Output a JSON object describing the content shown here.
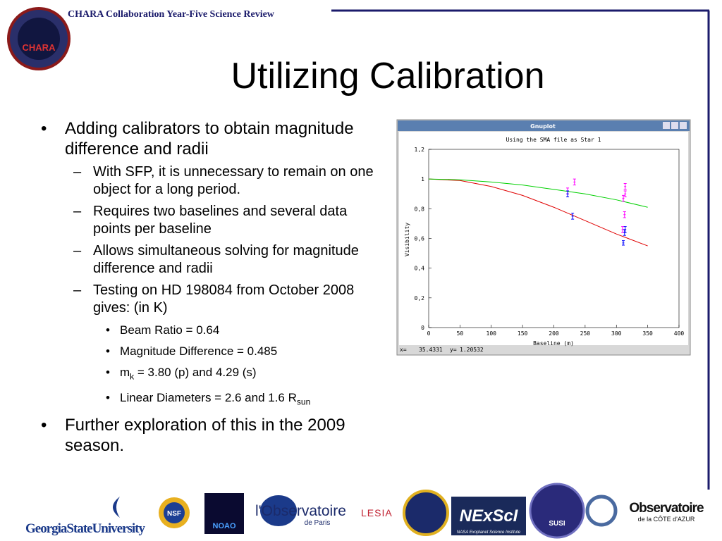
{
  "header": {
    "text": "CHARA Collaboration Year-Five Science Review",
    "logo_text": "CHARA"
  },
  "title": "Utilizing Calibration",
  "bullets": [
    {
      "text": "Adding calibrators to obtain magnitude difference and radii",
      "children": [
        {
          "text": "With SFP, it is unnecessary to remain on one object for a long period."
        },
        {
          "text": "Requires two baselines and several data points per baseline"
        },
        {
          "text": "Allows simultaneous solving for magnitude difference and radii"
        },
        {
          "text": "Testing on HD 198084 from October 2008 gives: (in K)",
          "children": [
            {
              "text": "Beam Ratio = 0.64"
            },
            {
              "text": "Magnitude Difference = 0.485"
            },
            {
              "parts": [
                "m",
                "k",
                " = 3.80 (p) and 4.29 (s)"
              ]
            },
            {
              "parts": [
                "Linear Diameters = 2.6 and 1.6 R",
                "sun"
              ]
            }
          ]
        }
      ]
    },
    {
      "text": "Further exploration of this in the 2009 season."
    }
  ],
  "window": {
    "title": "Gnuplot",
    "status": {
      "x_label": "x=",
      "x": 35.4331,
      "y_label": "y=",
      "y": 1.20532
    }
  },
  "chart_data": {
    "type": "line",
    "title": "Using the SMA file as Star 1",
    "xlabel": "Baseline (m)",
    "ylabel": "Visibility",
    "xlim": [
      0,
      400
    ],
    "xticks": [
      0,
      50,
      100,
      150,
      200,
      250,
      300,
      350,
      400
    ],
    "ylim": [
      0,
      1.2
    ],
    "yticks": [
      0,
      {
        "value": 0.2,
        "label": "0,2"
      },
      {
        "value": 0.4,
        "label": "0,4"
      },
      {
        "value": 0.6,
        "label": "0,6"
      },
      {
        "value": 0.8,
        "label": "0,8"
      },
      1,
      {
        "value": 1.2,
        "label": "1,2"
      }
    ],
    "series": [
      {
        "style": "lines",
        "color": "#e00000",
        "x": [
          0,
          50,
          100,
          150,
          200,
          250,
          300,
          350
        ],
        "values": [
          1,
          0.99,
          0.95,
          0.89,
          0.81,
          0.72,
          0.63,
          0.55
        ]
      },
      {
        "style": "lines",
        "color": "#00d000",
        "x": [
          0,
          50,
          100,
          150,
          200,
          250,
          300,
          350
        ],
        "values": [
          1,
          0.995,
          0.98,
          0.96,
          0.93,
          0.9,
          0.86,
          0.81
        ]
      },
      {
        "style": "errorbars",
        "color": "#ff00ff",
        "x": [
          222,
          233,
          311,
          314,
          314,
          313,
          310
        ],
        "values": [
          0.92,
          0.98,
          0.87,
          0.95,
          0.9,
          0.76,
          0.66
        ],
        "errors": [
          0.02,
          0.02,
          0.02,
          0.02,
          0.02,
          0.02,
          0.02
        ]
      },
      {
        "style": "errorbars",
        "color": "#0000ff",
        "x": [
          222,
          230,
          311,
          313,
          314
        ],
        "values": [
          0.9,
          0.75,
          0.57,
          0.64,
          0.66
        ],
        "errors": [
          0.02,
          0.02,
          0.015,
          0.02,
          0.02
        ]
      }
    ]
  },
  "logos": [
    "GeorgiaStateUniversity",
    "NSF",
    "NOAO",
    "l'Observatoire",
    "de Paris",
    "LESIA",
    "NExScI",
    "NASA Exoplanet Science Institute",
    "SUSI",
    "Observatoire",
    "de la CÔTE d'AZUR"
  ]
}
